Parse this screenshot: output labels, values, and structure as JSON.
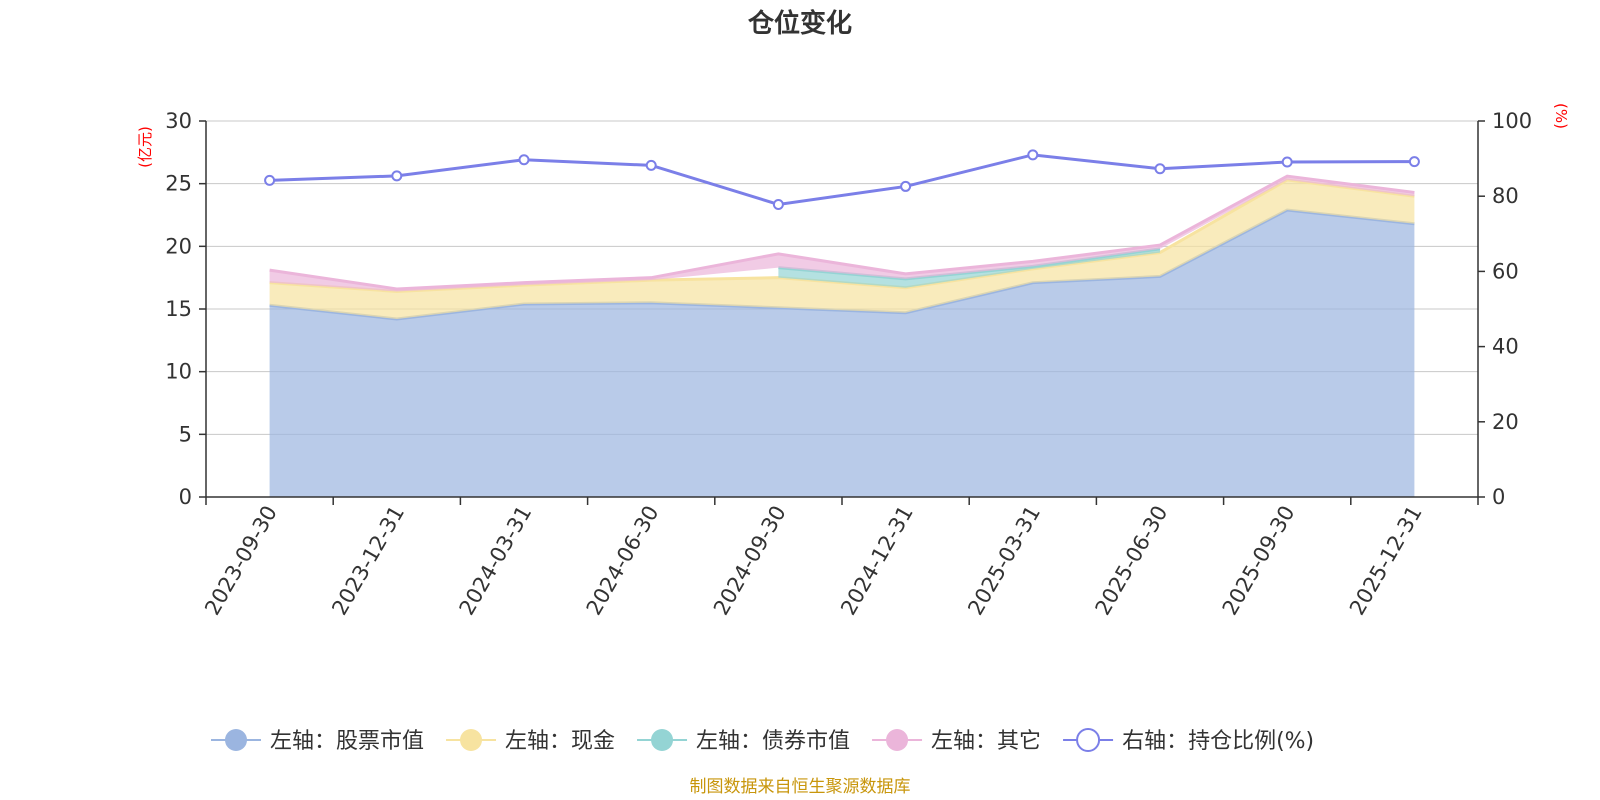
{
  "chart_data": {
    "type": "area",
    "title": "仓位变化",
    "left_axis_unit": "(亿元)",
    "right_axis_unit": "(%)",
    "left_ylim": [
      0,
      30
    ],
    "left_ticks": [
      0,
      5,
      10,
      15,
      20,
      25,
      30
    ],
    "right_ylim": [
      0,
      100
    ],
    "right_ticks": [
      0,
      20,
      40,
      60,
      80,
      100
    ],
    "grid": true,
    "legend_position": "bottom",
    "x": [
      "2023-09-30",
      "2023-12-31",
      "2024-03-31",
      "2024-06-30",
      "2024-09-30",
      "2024-12-31",
      "2025-03-31",
      "2025-06-30",
      "2025-09-30",
      "2025-12-31"
    ],
    "series": [
      {
        "name": "左轴：股票市值",
        "axis": "left",
        "type": "stacked-area",
        "color": "#9bb5e0",
        "values": [
          15.3,
          14.2,
          15.4,
          15.5,
          15.1,
          14.7,
          17.1,
          17.6,
          22.9,
          21.8
        ]
      },
      {
        "name": "左轴：现金",
        "axis": "left",
        "type": "stacked-area",
        "color": "#f7e3a0",
        "values": [
          1.8,
          2.2,
          1.5,
          1.8,
          2.4,
          2.0,
          1.1,
          1.9,
          2.4,
          2.2
        ]
      },
      {
        "name": "左轴：债券市值",
        "axis": "left",
        "type": "stacked-area",
        "color": "#94d4d4",
        "values": [
          0,
          0,
          0,
          0,
          0.8,
          0.7,
          0.2,
          0.3,
          0,
          0
        ]
      },
      {
        "name": "左轴：其它",
        "axis": "left",
        "type": "stacked-area",
        "color": "#ebb5da",
        "values": [
          1.0,
          0.2,
          0.2,
          0.2,
          1.1,
          0.4,
          0.4,
          0.3,
          0.3,
          0.3
        ]
      },
      {
        "name": "右轴：持仓比例(%)",
        "axis": "right",
        "type": "line",
        "color": "#7b7fe8",
        "values": [
          84.2,
          85.4,
          89.7,
          88.2,
          77.8,
          82.6,
          91.0,
          87.3,
          89.1,
          89.2
        ]
      }
    ]
  },
  "source_note": "制图数据来自恒生聚源数据库"
}
